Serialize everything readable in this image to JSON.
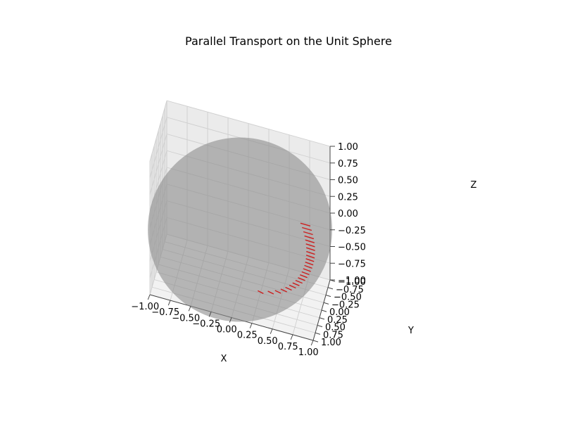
{
  "chart_data": {
    "type": "3d-surface-quiver",
    "title": "Parallel Transport on the Unit Sphere",
    "xlabel": "X",
    "ylabel": "Y",
    "zlabel": "Z",
    "xlim": [
      -1.0,
      1.0
    ],
    "ylim": [
      -1.0,
      1.0
    ],
    "zlim": [
      -1.0,
      1.0
    ],
    "xticks": [
      "−1.00",
      "−0.75",
      "−0.50",
      "−0.25",
      "0.00",
      "0.25",
      "0.50",
      "0.75",
      "1.00"
    ],
    "yticks": [
      "−1.00",
      "−0.75",
      "−0.50",
      "−0.25",
      "0.00",
      "0.25",
      "0.50",
      "0.75",
      "1.00"
    ],
    "zticks": [
      "−1.00",
      "−0.75",
      "−0.50",
      "−0.25",
      "0.00",
      "0.25",
      "0.50",
      "0.75",
      "1.00"
    ],
    "grid": true,
    "surface": {
      "name": "unit sphere",
      "radius": 1.0,
      "color": "#8c8c8c",
      "alpha": 0.6
    },
    "vectors": {
      "color": "#cc1f1f",
      "count": 24,
      "path_start_z": -0.95,
      "path_end_z": 0.35
    }
  }
}
